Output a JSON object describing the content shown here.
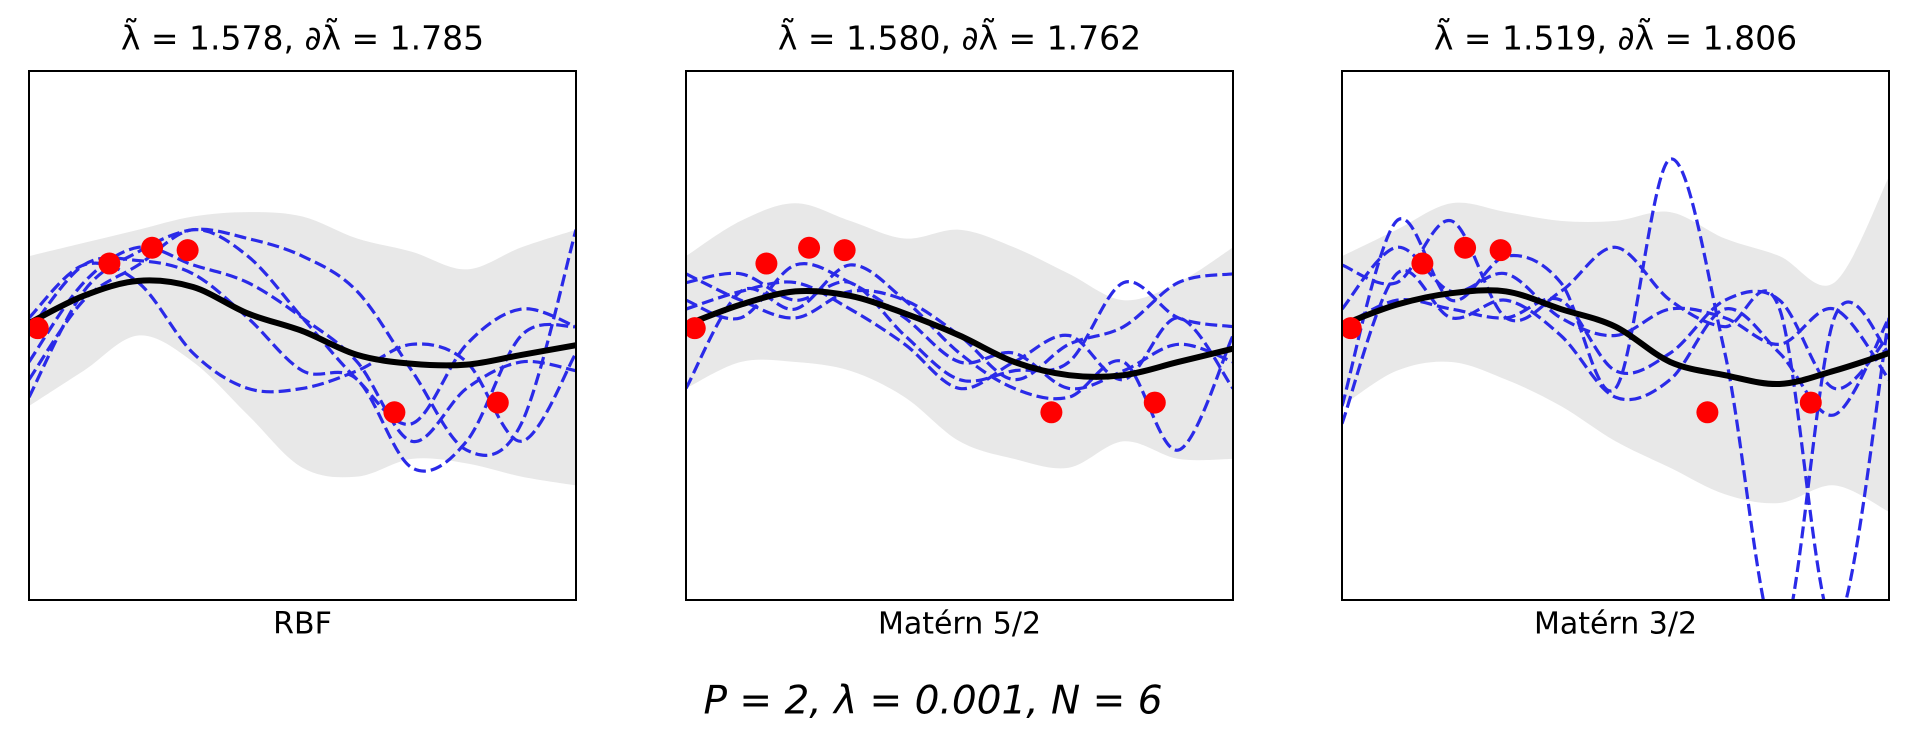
{
  "suptitle": "P = 2, λ = 0.001, N = 6",
  "chart_data": [
    {
      "type": "line",
      "title": "λ̃ = 1.578, ∂λ̃ = 1.785",
      "xlabel": "RBF",
      "xlim": [
        0,
        1
      ],
      "ylim": [
        -3,
        3
      ],
      "x": [
        0,
        0.1,
        0.2,
        0.3,
        0.4,
        0.5,
        0.6,
        0.7,
        0.8,
        0.9,
        1
      ],
      "band": {
        "color": "#e8e8e8",
        "upper": [
          0.9,
          1.05,
          1.2,
          1.35,
          1.4,
          1.35,
          1.1,
          0.95,
          0.75,
          1.0,
          1.2
        ],
        "lower": [
          -0.8,
          -0.4,
          0.0,
          -0.3,
          -0.9,
          -1.5,
          -1.6,
          -1.4,
          -1.45,
          -1.6,
          -1.7
        ]
      },
      "series": [
        {
          "color": "#2a2ae8",
          "style": "dashed",
          "values": [
            0.05,
            0.8,
            0.85,
            0.7,
            0.2,
            -0.4,
            -0.5,
            -1.5,
            -1.2,
            0.0,
            0.1
          ]
        },
        {
          "color": "#2a2ae8",
          "style": "dashed",
          "values": [
            -0.3,
            0.6,
            1.0,
            0.8,
            0.6,
            0.2,
            -0.3,
            -1.2,
            -0.6,
            -0.3,
            -0.4
          ]
        },
        {
          "color": "#2a2ae8",
          "style": "dashed",
          "values": [
            -0.7,
            0.5,
            0.95,
            1.2,
            1.1,
            0.9,
            0.5,
            -0.4,
            -1.3,
            -1.0,
            1.2
          ]
        },
        {
          "color": "#2a2ae8",
          "style": "dashed",
          "values": [
            0.2,
            0.8,
            0.6,
            -0.2,
            -0.6,
            -0.6,
            -0.4,
            -0.1,
            -0.3,
            -1.2,
            -0.2
          ]
        },
        {
          "color": "#2a2ae8",
          "style": "dashed",
          "values": [
            -0.5,
            0.4,
            0.8,
            1.2,
            0.9,
            0.2,
            -0.5,
            -1.0,
            -0.1,
            0.3,
            0.1
          ]
        },
        {
          "color": "#000000",
          "style": "solid",
          "values": [
            0.14,
            0.45,
            0.62,
            0.55,
            0.25,
            0.05,
            -0.22,
            -0.32,
            -0.33,
            -0.22,
            -0.11
          ]
        }
      ],
      "points": {
        "color": "#ff0000",
        "x": [
          0.016,
          0.147,
          0.225,
          0.29,
          0.668,
          0.857
        ],
        "y": [
          0.083,
          0.816,
          0.995,
          0.968,
          -0.871,
          -0.761
        ]
      }
    },
    {
      "type": "line",
      "title": "λ̃ = 1.580, ∂λ̃ = 1.762",
      "xlabel": "Matérn 5/2",
      "xlim": [
        0,
        1
      ],
      "ylim": [
        -3,
        3
      ],
      "x": [
        0,
        0.1,
        0.2,
        0.3,
        0.4,
        0.5,
        0.6,
        0.7,
        0.8,
        0.9,
        1
      ],
      "band": {
        "color": "#e8e8e8",
        "upper": [
          0.9,
          1.3,
          1.5,
          1.3,
          1.1,
          1.2,
          1.0,
          0.7,
          0.4,
          0.6,
          1.0
        ],
        "lower": [
          -0.6,
          -0.3,
          -0.3,
          -0.4,
          -0.7,
          -1.2,
          -1.4,
          -1.5,
          -1.2,
          -1.4,
          -1.4
        ]
      },
      "series": [
        {
          "color": "#2a2ae8",
          "style": "dashed",
          "values": [
            0.6,
            0.7,
            0.4,
            0.6,
            0.0,
            -0.5,
            -0.4,
            -0.3,
            0.6,
            0.2,
            0.1
          ]
        },
        {
          "color": "#2a2ae8",
          "style": "dashed",
          "values": [
            -0.6,
            0.5,
            0.3,
            0.8,
            0.4,
            -0.2,
            -0.6,
            -0.7,
            -0.3,
            -1.3,
            0.0
          ]
        },
        {
          "color": "#2a2ae8",
          "style": "dashed",
          "values": [
            0.3,
            0.5,
            0.6,
            0.3,
            -0.1,
            -0.6,
            -0.3,
            0.0,
            -0.5,
            0.2,
            -0.6
          ]
        },
        {
          "color": "#2a2ae8",
          "style": "dashed",
          "values": [
            0.7,
            0.4,
            0.2,
            0.5,
            0.4,
            0.0,
            -0.5,
            -0.1,
            0.1,
            0.6,
            0.7
          ]
        },
        {
          "color": "#2a2ae8",
          "style": "dashed",
          "values": [
            0.4,
            0.2,
            0.8,
            0.6,
            0.2,
            -0.3,
            -0.2,
            -0.6,
            -0.4,
            -0.1,
            -0.3
          ]
        },
        {
          "color": "#000000",
          "style": "solid",
          "values": [
            0.12,
            0.35,
            0.5,
            0.45,
            0.25,
            0.0,
            -0.3,
            -0.45,
            -0.45,
            -0.3,
            -0.15
          ]
        }
      ],
      "points": {
        "color": "#ff0000",
        "x": [
          0.016,
          0.147,
          0.225,
          0.29,
          0.668,
          0.857
        ],
        "y": [
          0.083,
          0.816,
          0.995,
          0.968,
          -0.871,
          -0.761
        ]
      }
    },
    {
      "type": "line",
      "title": "λ̃ = 1.519, ∂λ̃ = 1.806",
      "xlabel": "Matérn 3/2",
      "xlim": [
        0,
        1
      ],
      "ylim": [
        -3,
        3
      ],
      "x": [
        0,
        0.1,
        0.2,
        0.3,
        0.4,
        0.5,
        0.6,
        0.7,
        0.8,
        0.9,
        1
      ],
      "band": {
        "color": "#e8e8e8",
        "upper": [
          0.9,
          1.2,
          1.5,
          1.4,
          1.3,
          1.3,
          1.4,
          1.1,
          0.9,
          0.6,
          1.8
        ],
        "lower": [
          -0.8,
          -0.4,
          -0.3,
          -0.5,
          -0.8,
          -1.2,
          -1.5,
          -1.8,
          -1.9,
          -1.7,
          -2.0
        ]
      },
      "series": [
        {
          "color": "#2a2ae8",
          "style": "dashed",
          "values": [
            -0.8,
            1.3,
            0.4,
            0.9,
            0.6,
            -0.6,
            2.0,
            -0.2,
            -3.5,
            0.2,
            -0.2
          ]
        },
        {
          "color": "#2a2ae8",
          "style": "dashed",
          "values": [
            0.8,
            0.6,
            1.3,
            0.2,
            0.5,
            1.0,
            0.4,
            0.1,
            0.3,
            -3.3,
            0.2
          ]
        },
        {
          "color": "#2a2ae8",
          "style": "dashed",
          "values": [
            -1.0,
            0.7,
            0.2,
            0.4,
            0.0,
            -0.7,
            -0.5,
            0.3,
            -0.2,
            -0.9,
            0.2
          ]
        },
        {
          "color": "#2a2ae8",
          "style": "dashed",
          "values": [
            0.3,
            1.0,
            0.5,
            0.7,
            0.2,
            0.0,
            0.3,
            0.2,
            -0.1,
            0.3,
            -0.5
          ]
        },
        {
          "color": "#2a2ae8",
          "style": "dashed",
          "values": [
            0.1,
            0.4,
            0.3,
            0.2,
            0.4,
            -0.4,
            -0.2,
            0.4,
            0.4,
            -0.6,
            0.0
          ]
        },
        {
          "color": "#000000",
          "style": "solid",
          "values": [
            0.12,
            0.35,
            0.48,
            0.5,
            0.3,
            0.1,
            -0.3,
            -0.45,
            -0.55,
            -0.4,
            -0.2
          ]
        }
      ],
      "points": {
        "color": "#ff0000",
        "x": [
          0.016,
          0.147,
          0.225,
          0.29,
          0.668,
          0.857
        ],
        "y": [
          0.083,
          0.816,
          0.995,
          0.968,
          -0.871,
          -0.761
        ]
      }
    }
  ]
}
